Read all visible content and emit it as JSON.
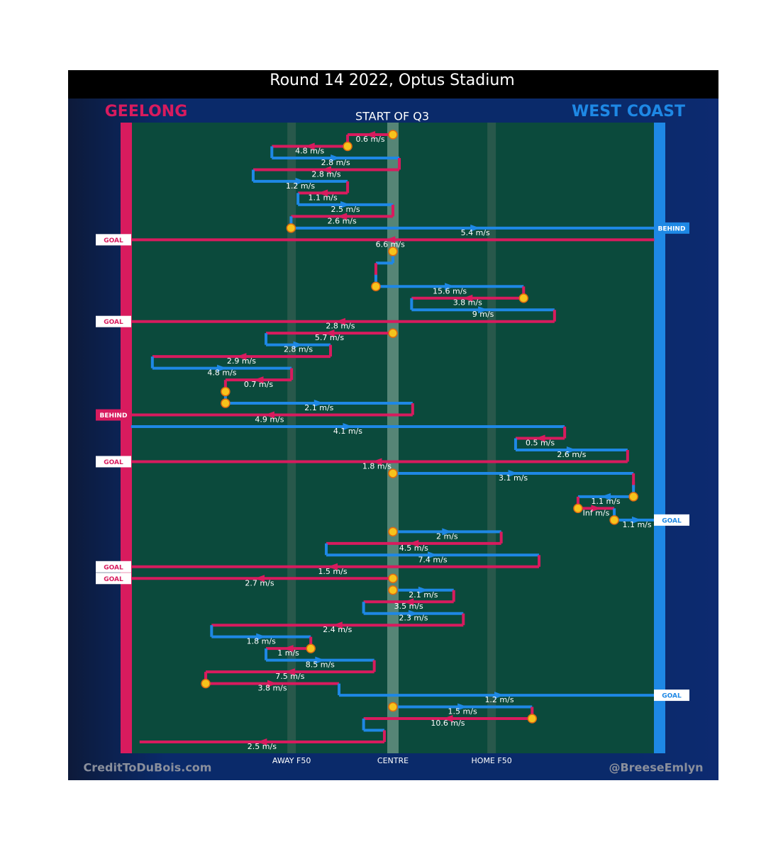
{
  "chart_data": {
    "type": "possession-chain",
    "title": "Round 14 2022, Optus Stadium",
    "subtitle": "START OF Q3",
    "teams": [
      {
        "name": "GEELONG",
        "color": "#d81b5e"
      },
      {
        "name": "WEST COAST",
        "color": "#1e88e5"
      }
    ],
    "xlim": [
      0,
      100
    ],
    "xticks": [
      {
        "value": 31,
        "label": "AWAY F50"
      },
      {
        "value": 50,
        "label": "CENTRE"
      },
      {
        "value": 68.5,
        "label": "HOME F50"
      }
    ],
    "credits": [
      "CreditToDuBois.com",
      "@BreeseEmlyn"
    ],
    "events": [
      {
        "team": 0,
        "x0": 50,
        "x1": 41.5,
        "label": "0.6 m/s",
        "stoppage": true
      },
      {
        "team": 0,
        "x0": 41.5,
        "x1": 27.3,
        "label": "4.8 m/s",
        "stoppage": true
      },
      {
        "team": 1,
        "x0": 27.3,
        "x1": 51.2,
        "label": "2.8 m/s"
      },
      {
        "team": 0,
        "x0": 51.2,
        "x1": 23.8,
        "label": "2.8 m/s"
      },
      {
        "team": 1,
        "x0": 23.8,
        "x1": 41.5,
        "label": "1.2 m/s"
      },
      {
        "team": 0,
        "x0": 41.5,
        "x1": 32.2,
        "label": "1.1 m/s"
      },
      {
        "team": 1,
        "x0": 32.2,
        "x1": 50,
        "label": "2.5 m/s"
      },
      {
        "team": 0,
        "x0": 50,
        "x1": 30.9,
        "label": "2.6 m/s"
      },
      {
        "team": 1,
        "x0": 30.9,
        "x1": 100,
        "label": "5.4 m/s",
        "stoppage": true,
        "result": "BEHIND"
      },
      {
        "team": 0,
        "x0": 99,
        "x1": 0,
        "label": "6.6 m/s",
        "result": "GOAL"
      },
      {
        "team": 0,
        "x0": 50,
        "x1": 50,
        "stoppage": true
      },
      {
        "team": 1,
        "x0": 50,
        "x1": 46.8
      },
      {
        "team": 0,
        "x0": 46.8,
        "x1": 46.8
      },
      {
        "team": 1,
        "x0": 46.8,
        "x1": 74.5,
        "label": "15.6 m/s",
        "stoppage": true
      },
      {
        "team": 0,
        "x0": 74.5,
        "x1": 53.5,
        "label": "3.8 m/s",
        "stoppage": true
      },
      {
        "team": 1,
        "x0": 53.5,
        "x1": 80.3,
        "label": "9 m/s"
      },
      {
        "team": 0,
        "x0": 80.3,
        "x1": 0,
        "label": "2.8 m/s",
        "result": "GOAL"
      },
      {
        "team": 0,
        "x0": 50,
        "x1": 26.2,
        "label": "5.7 m/s",
        "stoppage": true
      },
      {
        "team": 1,
        "x0": 26.2,
        "x1": 38.3,
        "label": "2.8 m/s"
      },
      {
        "team": 0,
        "x0": 38.3,
        "x1": 4.9,
        "label": "2.9 m/s"
      },
      {
        "team": 1,
        "x0": 4.9,
        "x1": 31,
        "label": "4.8 m/s"
      },
      {
        "team": 0,
        "x0": 31,
        "x1": 18.6,
        "label": "0.7 m/s"
      },
      {
        "team": 0,
        "x0": 18.6,
        "x1": 18.6,
        "stoppage": true
      },
      {
        "team": 1,
        "x0": 18.6,
        "x1": 53.7,
        "label": "2.1 m/s",
        "stoppage": true
      },
      {
        "team": 0,
        "x0": 53.7,
        "x1": 0,
        "label": "4.9 m/s",
        "result": "BEHIND"
      },
      {
        "team": 1,
        "x0": 0.9,
        "x1": 82.2,
        "label": "4.1 m/s"
      },
      {
        "team": 0,
        "x0": 82.2,
        "x1": 73,
        "label": "0.5 m/s"
      },
      {
        "team": 1,
        "x0": 73,
        "x1": 94,
        "label": "2.6 m/s"
      },
      {
        "team": 0,
        "x0": 94,
        "x1": 0,
        "label": "1.8 m/s",
        "result": "GOAL"
      },
      {
        "team": 1,
        "x0": 50,
        "x1": 95.1,
        "label": "3.1 m/s",
        "stoppage": true
      },
      {
        "team": 0,
        "x0": 95.1,
        "x1": 95.1
      },
      {
        "team": 1,
        "x0": 95.1,
        "x1": 84.7,
        "label": "1.1 m/s",
        "stoppage": true
      },
      {
        "team": 0,
        "x0": 84.7,
        "x1": 91.5,
        "label": "Inf m/s",
        "stoppage": true
      },
      {
        "team": 1,
        "x0": 91.5,
        "x1": 100,
        "label": "1.1 m/s",
        "stoppage": true,
        "result": "GOAL"
      },
      {
        "team": 1,
        "x0": 50,
        "x1": 70.3,
        "label": "2 m/s",
        "stoppage": true
      },
      {
        "team": 0,
        "x0": 70.3,
        "x1": 37.5,
        "label": "4.5 m/s"
      },
      {
        "team": 1,
        "x0": 37.5,
        "x1": 77.4,
        "label": "7.4 m/s"
      },
      {
        "team": 0,
        "x0": 77.4,
        "x1": 0,
        "label": "1.5 m/s",
        "result": "GOAL"
      },
      {
        "team": 0,
        "x0": 50,
        "x1": 0,
        "label": "2.7 m/s",
        "stoppage": true,
        "result": "GOAL"
      },
      {
        "team": 1,
        "x0": 50,
        "x1": 61.4,
        "label": "2.1 m/s",
        "stoppage": true
      },
      {
        "team": 0,
        "x0": 61.4,
        "x1": 44.5,
        "label": "3.5 m/s"
      },
      {
        "team": 1,
        "x0": 44.5,
        "x1": 63.2,
        "label": "2.3 m/s"
      },
      {
        "team": 0,
        "x0": 63.2,
        "x1": 16,
        "label": "2.4 m/s"
      },
      {
        "team": 1,
        "x0": 16,
        "x1": 34.6,
        "label": "1.8 m/s"
      },
      {
        "team": 0,
        "x0": 34.6,
        "x1": 26.2,
        "label": "1 m/s",
        "stoppage": true
      },
      {
        "team": 1,
        "x0": 26.2,
        "x1": 46.5,
        "label": "8.5 m/s"
      },
      {
        "team": 0,
        "x0": 46.5,
        "x1": 14.9,
        "label": "7.5 m/s"
      },
      {
        "team": 0,
        "x0": 14.9,
        "x1": 39.9,
        "label": "3.8 m/s",
        "stoppage": true
      },
      {
        "team": 1,
        "x0": 39.9,
        "x1": 100,
        "label": "1.2 m/s",
        "result": "GOAL"
      },
      {
        "team": 1,
        "x0": 50,
        "x1": 76.1,
        "label": "1.5 m/s",
        "stoppage": true
      },
      {
        "team": 0,
        "x0": 76.1,
        "x1": 44.5,
        "label": "10.6 m/s",
        "stoppage": true
      },
      {
        "team": 1,
        "x0": 44.5,
        "x1": 48.4
      },
      {
        "team": 0,
        "x0": 48.4,
        "x1": 2.5,
        "label": "2.5 m/s"
      }
    ]
  }
}
